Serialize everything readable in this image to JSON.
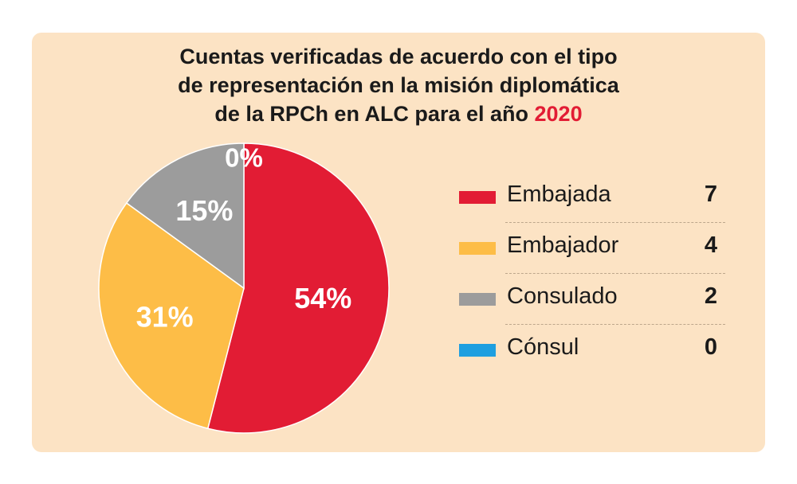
{
  "chart_data": {
    "type": "pie",
    "title_lines": [
      "Cuentas verificadas de acuerdo con el tipo",
      "de representación en la misión diplomática",
      "de la RPCh en ALC para el año"
    ],
    "title_highlight": "2020",
    "slices": [
      {
        "label": "Embajada",
        "count": "7",
        "value": 54,
        "percent_label": "54%",
        "color": "#e21c34"
      },
      {
        "label": "Embajador",
        "count": "4",
        "value": 31,
        "percent_label": "31%",
        "color": "#fdbd47"
      },
      {
        "label": "Consulado",
        "count": "2",
        "value": 15,
        "percent_label": "15%",
        "color": "#9c9c9c"
      },
      {
        "label": "Cónsul",
        "count": "0",
        "value": 0,
        "percent_label": "0%",
        "color": "#1e9fe0"
      }
    ],
    "legend_position": "right",
    "highlight_color": "#e21c34",
    "background_color": "#fce3c4"
  }
}
